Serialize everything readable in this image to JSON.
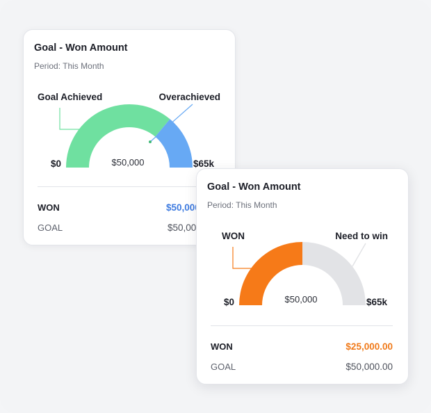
{
  "colors": {
    "achieved": "#6fe0a0",
    "overachieved": "#67a9f4",
    "won": "#f67a18",
    "need_to_win": "#e2e3e6",
    "won_value_blue": "#3e7be0",
    "won_value_orange": "#f07a1a"
  },
  "card1": {
    "title": "Goal - Won Amount",
    "period": "Period: This Month",
    "label_left": "Goal Achieved",
    "label_right": "Overachieved",
    "min_label": "$0",
    "max_label": "$65k",
    "center_value": "$50,000",
    "won_label": "WON",
    "won_value": "$50,000.00",
    "goal_label": "GOAL",
    "goal_value": "$50,000.00"
  },
  "card2": {
    "title": "Goal - Won Amount",
    "period": "Period: This Month",
    "label_left": "WON",
    "label_right": "Need to win",
    "min_label": "$0",
    "max_label": "$65k",
    "center_value": "$50,000",
    "won_label": "WON",
    "won_value": "$25,000.00",
    "goal_label": "GOAL",
    "goal_value": "$50,000.00"
  }
}
